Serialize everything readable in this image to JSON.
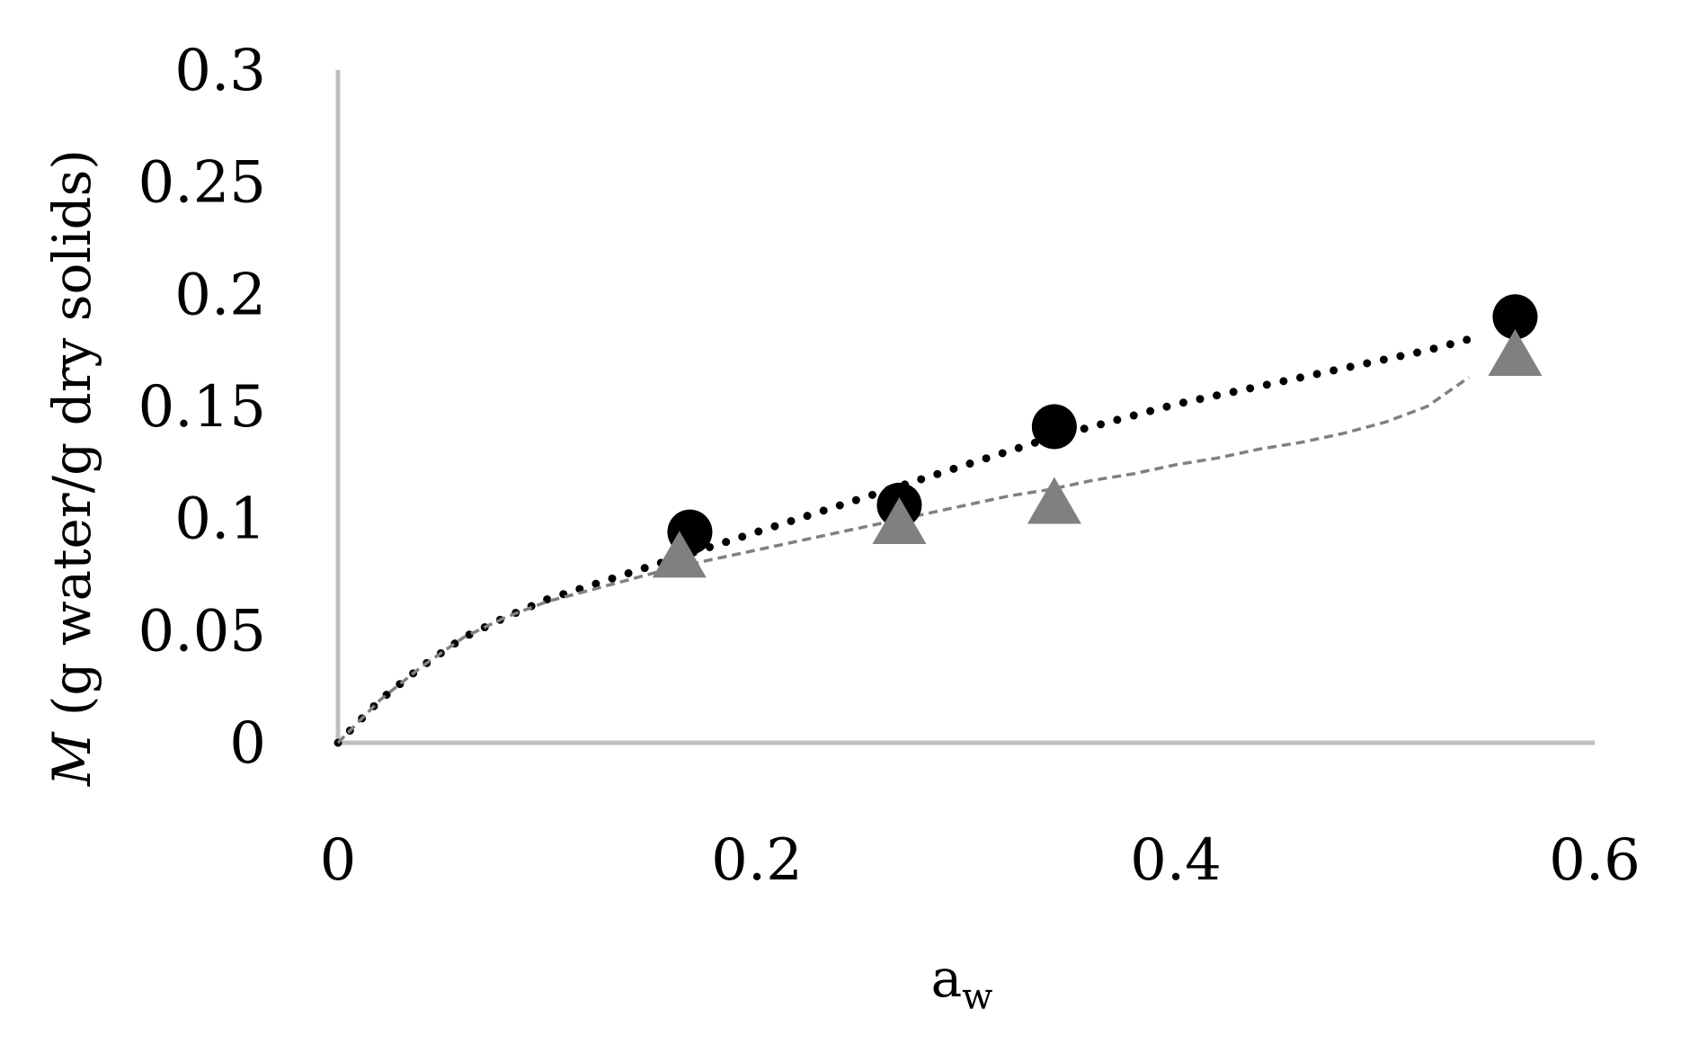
{
  "chart_data": {
    "type": "scatter",
    "xlabel": {
      "main": "a",
      "sub": "w"
    },
    "ylabel": {
      "italic": "M",
      "rest": " (g water/g dry solids)"
    },
    "xlim": [
      0,
      0.6
    ],
    "ylim": [
      0,
      0.3
    ],
    "xticks": [
      "0",
      "0.2",
      "0.4",
      "0.6"
    ],
    "yticks": [
      "0",
      "0.05",
      "0.1",
      "0.15",
      "0.2",
      "0.25",
      "0.3"
    ],
    "grid": false,
    "series": [
      {
        "marker": "circle",
        "color": "#000000",
        "points": [
          {
            "x": 0.168,
            "y": 0.094
          },
          {
            "x": 0.268,
            "y": 0.106
          },
          {
            "x": 0.342,
            "y": 0.141
          },
          {
            "x": 0.562,
            "y": 0.19
          }
        ]
      },
      {
        "marker": "triangle",
        "color": "#808080",
        "points": [
          {
            "x": 0.163,
            "y": 0.082
          },
          {
            "x": 0.268,
            "y": 0.097
          },
          {
            "x": 0.342,
            "y": 0.106
          },
          {
            "x": 0.562,
            "y": 0.172
          }
        ]
      }
    ],
    "fit_curves": [
      {
        "style": "dotted",
        "color": "#000000",
        "points": [
          [
            0,
            0
          ],
          [
            0.02,
            0.019
          ],
          [
            0.04,
            0.034
          ],
          [
            0.06,
            0.047
          ],
          [
            0.08,
            0.056
          ],
          [
            0.1,
            0.064
          ],
          [
            0.12,
            0.07
          ],
          [
            0.14,
            0.076
          ],
          [
            0.16,
            0.082
          ],
          [
            0.18,
            0.088
          ],
          [
            0.2,
            0.094
          ],
          [
            0.22,
            0.1
          ],
          [
            0.24,
            0.106
          ],
          [
            0.26,
            0.112
          ],
          [
            0.28,
            0.118
          ],
          [
            0.3,
            0.124
          ],
          [
            0.32,
            0.13
          ],
          [
            0.34,
            0.136
          ],
          [
            0.36,
            0.141
          ],
          [
            0.38,
            0.146
          ],
          [
            0.4,
            0.151
          ],
          [
            0.42,
            0.155
          ],
          [
            0.44,
            0.159
          ],
          [
            0.46,
            0.163
          ],
          [
            0.48,
            0.167
          ],
          [
            0.5,
            0.171
          ],
          [
            0.52,
            0.175
          ],
          [
            0.54,
            0.18
          ]
        ]
      },
      {
        "style": "dashed",
        "color": "#808080",
        "points": [
          [
            0,
            0
          ],
          [
            0.02,
            0.019
          ],
          [
            0.04,
            0.034
          ],
          [
            0.06,
            0.047
          ],
          [
            0.08,
            0.056
          ],
          [
            0.1,
            0.063
          ],
          [
            0.12,
            0.068
          ],
          [
            0.14,
            0.073
          ],
          [
            0.16,
            0.078
          ],
          [
            0.18,
            0.082
          ],
          [
            0.2,
            0.086
          ],
          [
            0.22,
            0.09
          ],
          [
            0.24,
            0.094
          ],
          [
            0.26,
            0.098
          ],
          [
            0.28,
            0.102
          ],
          [
            0.3,
            0.106
          ],
          [
            0.32,
            0.11
          ],
          [
            0.34,
            0.113
          ],
          [
            0.36,
            0.117
          ],
          [
            0.38,
            0.12
          ],
          [
            0.4,
            0.124
          ],
          [
            0.42,
            0.127
          ],
          [
            0.44,
            0.131
          ],
          [
            0.46,
            0.134
          ],
          [
            0.48,
            0.138
          ],
          [
            0.5,
            0.143
          ],
          [
            0.52,
            0.15
          ],
          [
            0.54,
            0.163
          ]
        ]
      }
    ]
  }
}
